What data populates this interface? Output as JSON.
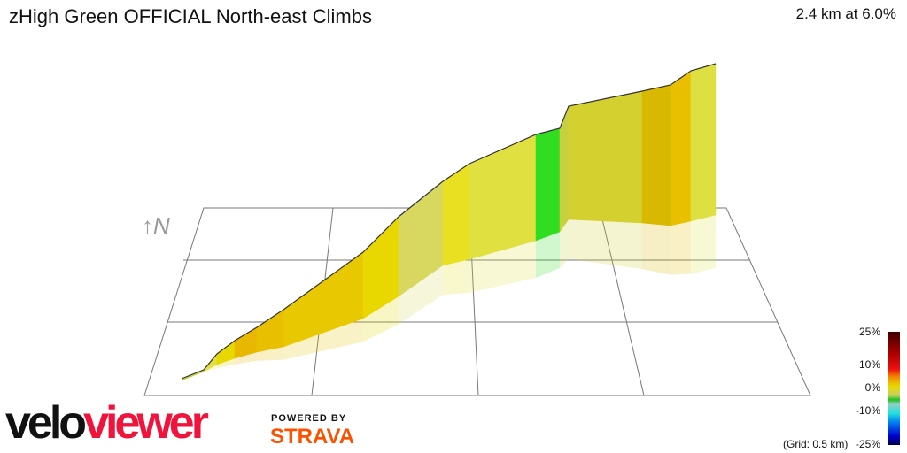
{
  "header": {
    "title": "zHigh Green OFFICIAL North-east Climbs",
    "summary": "2.4 km at 6.0%"
  },
  "compass": {
    "label": "↑N",
    "icon": "north-arrow-icon"
  },
  "legend": {
    "ticks": [
      "25%",
      "10%",
      "0%",
      "-10%",
      "-25%"
    ],
    "grid_note": "(Grid: 0.5 km)"
  },
  "branding": {
    "logo_part1": "velo",
    "logo_part2": "viewer",
    "powered_by": "POWERED BY",
    "strava": "STRAVA"
  },
  "colors": {
    "logo_red": "#f0143c",
    "strava_orange": "#fc5200"
  },
  "chart_data": {
    "type": "area",
    "title": "zHigh Green OFFICIAL North-east Climbs",
    "subtitle": "2.4 km at 6.0%",
    "colorscale": {
      "label_ticks": [
        "25%",
        "10%",
        "0%",
        "-10%",
        "-25%"
      ],
      "range": [
        -25,
        25
      ]
    },
    "grid": "0.5 km",
    "distance_km": 2.4,
    "average_gradient_pct": 6.0
  }
}
